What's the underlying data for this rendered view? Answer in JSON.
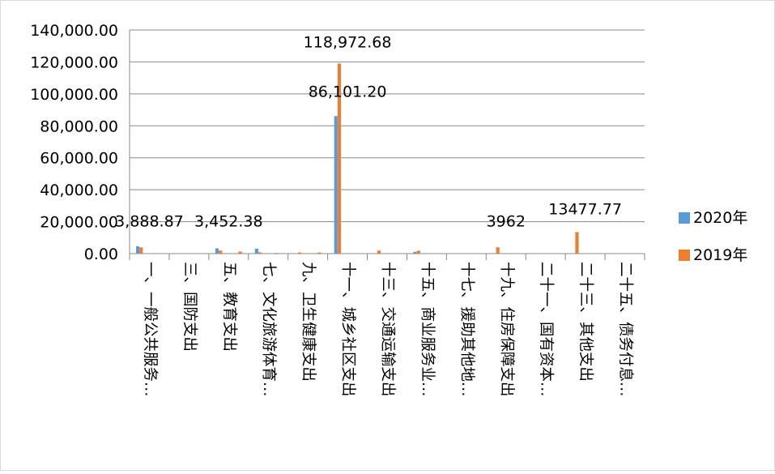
{
  "chart_data": {
    "type": "bar",
    "categories": [
      "一、一般公共服务…",
      "三、国防支出",
      "五、教育支出",
      "七、文化旅游体育…",
      "九、卫生健康支出",
      "十一、城乡社区支出",
      "十三、交通运输支出",
      "十五、商业服务业…",
      "十七、援助其他地…",
      "十九、住房保障支出",
      "二十一、国有资本…",
      "二十三、其他支出",
      "二十五、债务付息…"
    ],
    "sub_values": {
      "2020年": [
        [
          4600,
          0
        ],
        [
          0,
          0
        ],
        [
          3300,
          0
        ],
        [
          3100,
          400
        ],
        [
          0,
          300
        ],
        [
          86101.2,
          0
        ],
        [
          0,
          0
        ],
        [
          1100,
          0
        ],
        [
          0,
          0
        ],
        [
          0,
          0
        ],
        [
          0,
          0
        ],
        [
          0,
          0
        ],
        [
          0,
          0
        ]
      ],
      "2019年": [
        [
          3888.87,
          0
        ],
        [
          0,
          0
        ],
        [
          1900,
          1300
        ],
        [
          800,
          0
        ],
        [
          700,
          700
        ],
        [
          118972.68,
          0
        ],
        [
          1900,
          0
        ],
        [
          1800,
          0
        ],
        [
          0,
          0
        ],
        [
          3962,
          0
        ],
        [
          0,
          0
        ],
        [
          13477.77,
          0
        ],
        [
          0,
          0
        ]
      ]
    },
    "series": [
      {
        "name": "2020年",
        "color": "#5B9BD5"
      },
      {
        "name": "2019年",
        "color": "#ED7D31"
      }
    ],
    "data_labels": [
      {
        "text": "3,888.87",
        "category": 0,
        "value": 3888.87
      },
      {
        "text": "3,452.38",
        "category": 2,
        "value": 3452.38
      },
      {
        "text": "86,101.20",
        "category": 5,
        "value": 86101.2
      },
      {
        "text": "118,972.68",
        "category": 5,
        "value": 118972.68
      },
      {
        "text": "3962",
        "category": 9,
        "value": 3962
      },
      {
        "text": "13477.77",
        "category": 11,
        "value": 13477.77
      }
    ],
    "yticks": [
      "0.00",
      "20,000.00",
      "40,000.00",
      "60,000.00",
      "80,000.00",
      "100,000.00",
      "120,000.00",
      "140,000.00"
    ],
    "ylim": [
      0,
      140000
    ],
    "grid": true,
    "legend_position": "right",
    "title": "",
    "xlabel": "",
    "ylabel": ""
  }
}
